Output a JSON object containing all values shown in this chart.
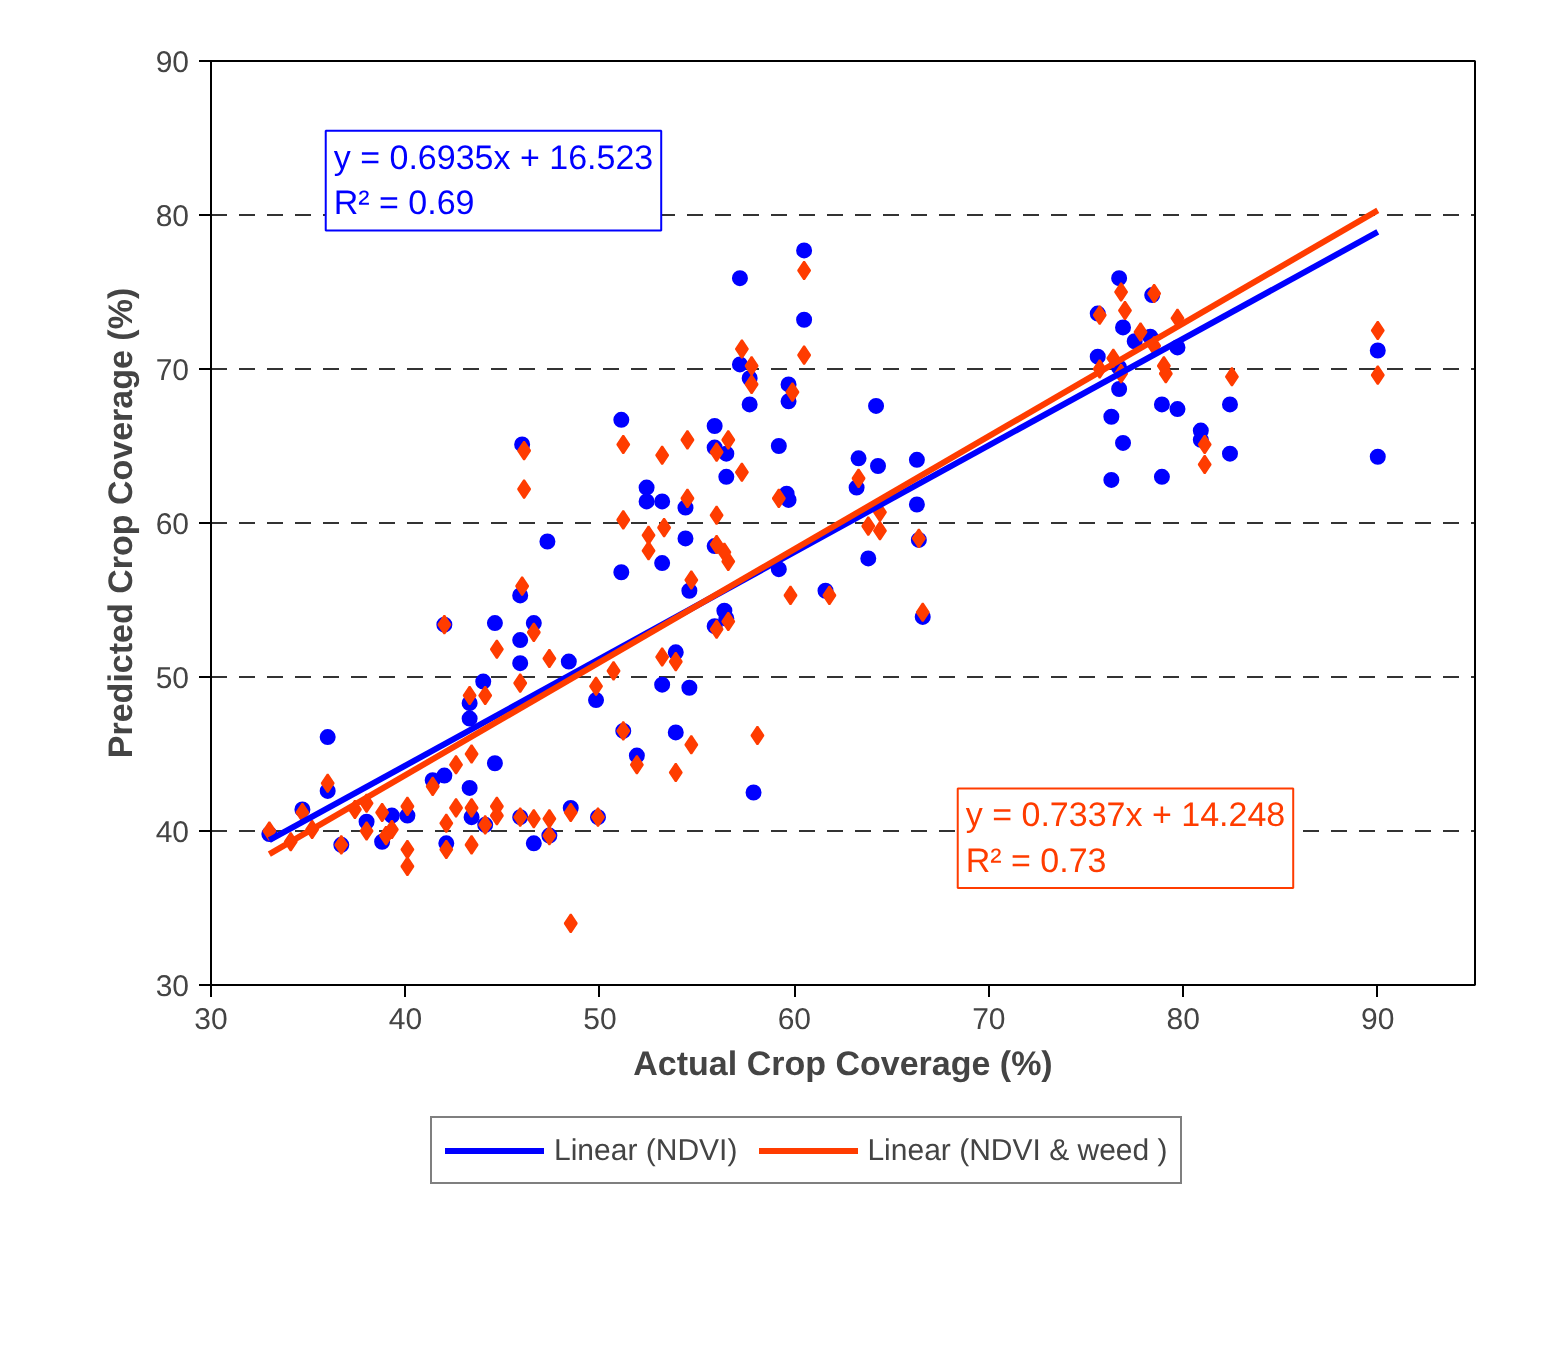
{
  "chart_data": {
    "type": "scatter",
    "xlabel": "Actual Crop Coverage (%)",
    "ylabel": "Predicted Crop Coverage (%)",
    "xlim": [
      30,
      95
    ],
    "ylim": [
      30,
      90
    ],
    "xticks": [
      30,
      40,
      50,
      60,
      70,
      80,
      90
    ],
    "yticks": [
      30,
      40,
      50,
      60,
      70,
      80,
      90
    ],
    "grid": "y",
    "legend": "bottom",
    "annotations": [
      "y = 0.6935x + 16.523\nR² = 0.69",
      "y = 0.7337x + 14.248\nR² = 0.73"
    ],
    "series": [
      {
        "marker": "circle",
        "color": "#0000ff",
        "x": [
          51.1,
          45.9,
          42.0,
          44.6,
          46.6,
          45.9,
          44.0,
          45.9,
          43.3,
          43.3,
          48.4,
          49.8,
          51.2,
          51.9,
          36.0,
          36.0,
          41.4,
          42.0,
          44.6,
          43.3,
          33.0,
          34.7,
          36.7,
          38.0,
          39.3,
          38.8,
          40.1,
          42.1,
          43.4,
          44.1,
          45.9,
          46.6,
          47.4,
          48.5,
          49.9,
          60.5,
          57.2,
          57.2,
          57.7,
          57.7,
          60.5,
          59.7,
          59.7,
          64.2,
          51.1,
          46.0,
          55.9,
          55.9,
          56.5,
          56.5,
          59.2,
          59.6,
          59.7,
          52.4,
          52.4,
          53.2,
          54.4,
          54.4,
          53.2,
          55.9,
          54.6,
          56.4,
          56.5,
          55.9,
          63.3,
          63.2,
          63.8,
          59.2,
          61.6,
          47.3,
          53.2,
          54.6,
          53.9,
          53.9,
          57.9,
          64.3,
          66.3,
          66.3,
          66.4,
          66.6,
          75.6,
          76.7,
          76.9,
          75.6,
          76.7,
          76.7,
          77.5,
          78.3,
          78.4,
          79.7,
          78.9,
          79.7,
          76.3,
          76.9,
          76.3,
          78.9,
          80.9,
          80.9,
          82.4,
          82.4,
          90,
          90
        ],
        "values": [
          56.8,
          55.3,
          53.4,
          53.5,
          53.5,
          52.4,
          49.7,
          50.9,
          48.3,
          47.3,
          51.0,
          48.5,
          46.5,
          44.9,
          46.1,
          42.6,
          43.3,
          43.6,
          44.4,
          42.8,
          39.8,
          41.4,
          39.1,
          40.6,
          41.0,
          39.3,
          41.0,
          39.2,
          40.9,
          40.4,
          40.9,
          39.2,
          39.7,
          41.5,
          40.9,
          77.7,
          75.9,
          70.3,
          69.4,
          67.7,
          73.2,
          69.0,
          67.9,
          67.6,
          66.7,
          65.1,
          66.3,
          64.9,
          64.5,
          63.0,
          65.0,
          61.9,
          61.5,
          62.3,
          61.4,
          61.4,
          61.0,
          59.0,
          57.4,
          58.5,
          55.6,
          54.3,
          53.8,
          53.3,
          64.2,
          62.3,
          57.7,
          57.0,
          55.6,
          58.8,
          49.5,
          49.3,
          51.6,
          46.4,
          42.5,
          63.7,
          64.1,
          61.2,
          58.9,
          53.9,
          73.6,
          75.9,
          72.7,
          70.8,
          70.1,
          68.7,
          71.8,
          72.1,
          74.8,
          71.4,
          67.7,
          67.4,
          66.9,
          65.2,
          62.8,
          63.0,
          66.0,
          65.4,
          67.7,
          64.5,
          71.2,
          64.3
        ]
      },
      {
        "marker": "diamond",
        "color": "#ff3c00",
        "x": [
          46.0,
          42.0,
          44.7,
          46.6,
          44.1,
          45.9,
          43.3,
          47.4,
          49.8,
          50.7,
          51.2,
          51.9,
          36.0,
          41.4,
          42.6,
          43.4,
          33.0,
          34.7,
          35.2,
          34.1,
          36.7,
          37.4,
          38.0,
          38.0,
          38.8,
          39.0,
          39.3,
          40.1,
          40.1,
          40.1,
          42.1,
          42.1,
          42.6,
          43.4,
          43.4,
          44.1,
          44.7,
          44.7,
          45.9,
          46.6,
          47.4,
          47.4,
          48.5,
          49.9,
          48.5,
          60.5,
          57.3,
          57.8,
          57.8,
          60.5,
          59.9,
          51.2,
          46.1,
          46.1,
          54.5,
          53.2,
          56.0,
          56.6,
          57.3,
          59.2,
          54.5,
          51.2,
          52.5,
          52.5,
          53.3,
          56.0,
          56.0,
          56.4,
          56.6,
          54.7,
          56.0,
          56.6,
          63.3,
          63.8,
          59.8,
          61.8,
          53.2,
          53.9,
          54.7,
          53.9,
          58.1,
          64.4,
          64.4,
          66.4,
          66.6,
          75.7,
          76.8,
          77.0,
          76.4,
          75.7,
          76.8,
          77.8,
          78.5,
          78.5,
          79.7,
          79.0,
          79.1,
          81.1,
          81.1,
          82.5,
          90,
          90
        ],
        "values": [
          55.9,
          53.4,
          51.8,
          52.9,
          48.8,
          49.6,
          48.8,
          51.2,
          49.4,
          50.4,
          46.5,
          44.3,
          43.1,
          42.9,
          44.3,
          45.0,
          40.0,
          41.2,
          40.1,
          39.3,
          39.1,
          41.4,
          41.8,
          40.0,
          41.2,
          39.7,
          40.1,
          41.6,
          38.8,
          37.7,
          40.5,
          38.8,
          41.5,
          41.5,
          39.1,
          40.4,
          41.6,
          41.0,
          40.9,
          40.8,
          40.8,
          39.7,
          41.2,
          40.9,
          34.0,
          76.4,
          71.3,
          70.2,
          69.0,
          70.9,
          68.5,
          65.1,
          64.7,
          62.2,
          65.4,
          64.4,
          64.6,
          65.4,
          63.3,
          61.6,
          61.6,
          60.2,
          59.2,
          58.2,
          59.7,
          60.5,
          58.6,
          58.1,
          57.5,
          56.3,
          53.1,
          53.6,
          62.9,
          59.8,
          55.3,
          55.3,
          51.3,
          51.0,
          45.6,
          43.8,
          46.2,
          60.7,
          59.5,
          59.0,
          54.2,
          73.5,
          75.0,
          73.8,
          70.7,
          70.0,
          69.7,
          72.4,
          71.5,
          74.9,
          73.3,
          70.2,
          69.7,
          65.1,
          63.8,
          69.5,
          72.5,
          69.6
        ]
      },
      {
        "type": "line",
        "name": "Linear (NDVI)",
        "color": "#0000ff",
        "x": [
          33,
          90
        ],
        "values": [
          39.4,
          78.9
        ]
      },
      {
        "type": "line",
        "name": "Linear (NDVI & weed )",
        "color": "#ff3c00",
        "x": [
          33,
          90
        ],
        "values": [
          38.5,
          80.3
        ]
      }
    ]
  }
}
